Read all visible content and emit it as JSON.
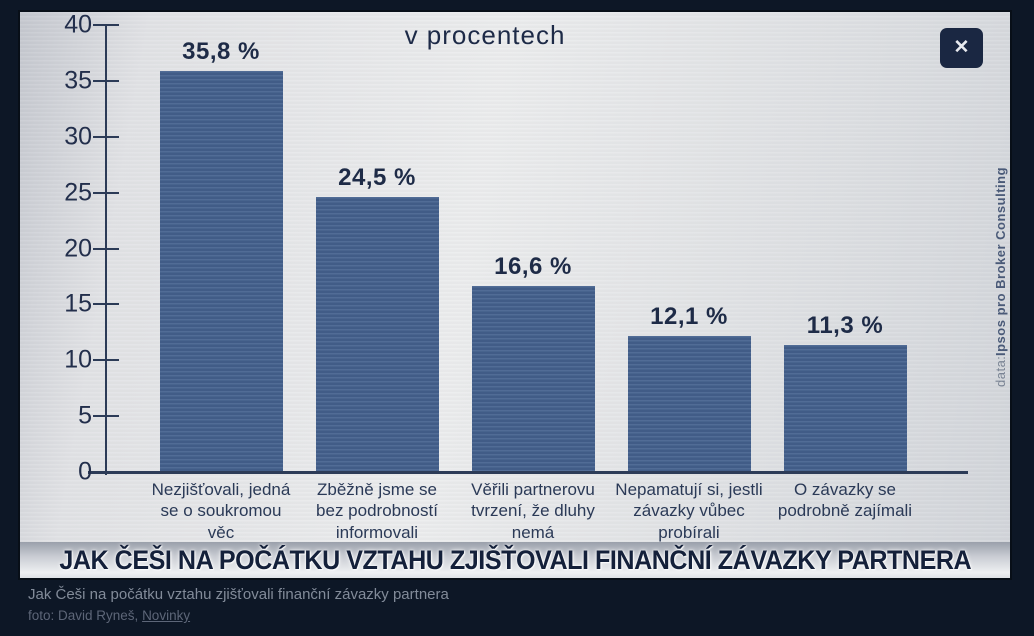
{
  "window": {
    "close_icon": "✕"
  },
  "chart_data": {
    "type": "bar",
    "title": "v procentech",
    "categories": [
      "Nezjišťovali, jedná se o soukromou věc",
      "Zběžně jsme se bez podrobností informovali",
      "Věřili partnerovu tvrzení, že dluhy nemá",
      "Nepamatují si, jestli závazky vůbec probírali",
      "O závazky se podrobně zajímali"
    ],
    "values": [
      35.8,
      24.5,
      16.6,
      12.1,
      11.3
    ],
    "value_labels": [
      "35,8 %",
      "24,5 %",
      "16,6 %",
      "12,1 %",
      "11,3 %"
    ],
    "xlabel": "",
    "ylabel": "",
    "ylim": [
      0,
      40
    ],
    "ytick_step": 5,
    "grid": false,
    "legend": false,
    "bar_color": "#44618e",
    "source_prefix": "data: ",
    "source_name": "Ipsos pro Broker Consulting"
  },
  "banner": {
    "title": "JAK ČEŠI NA POČÁTKU VZTAHU ZJIŠŤOVALI FINANČNÍ ZÁVAZKY PARTNERA"
  },
  "caption": {
    "line1": "Jak Češi na počátku vztahu zjišťovali finanční závazky partnera",
    "foto_prefix": "foto: David Ryneš, ",
    "foto_link": "Novinky"
  }
}
